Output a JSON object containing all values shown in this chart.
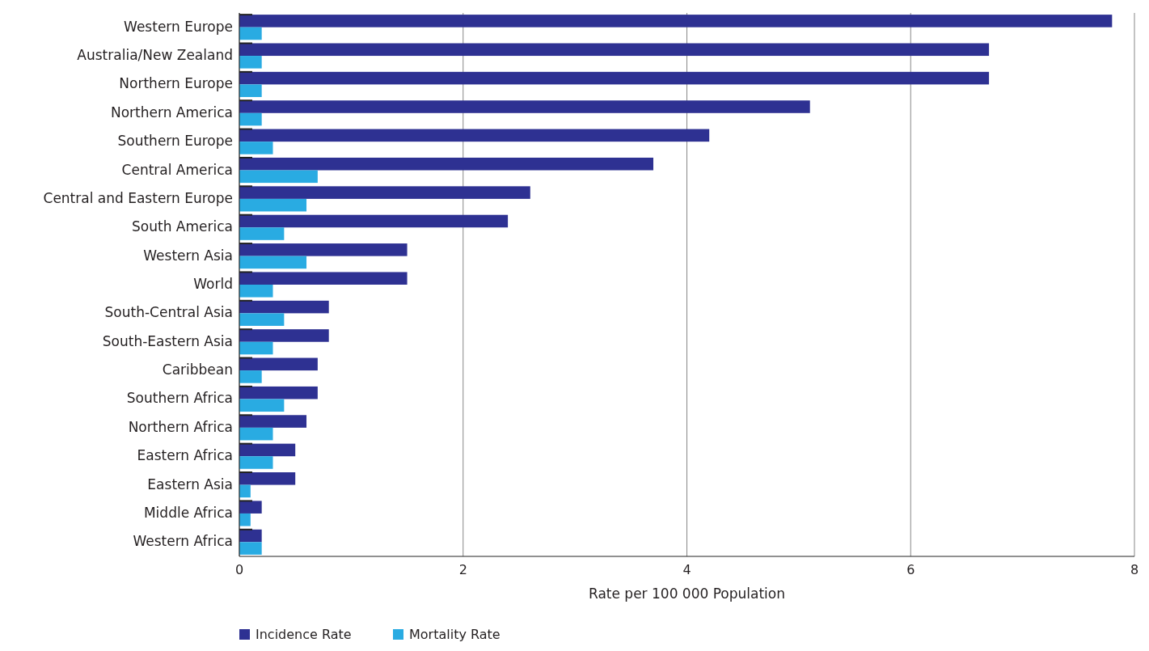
{
  "chart_data": {
    "type": "bar",
    "orientation": "horizontal",
    "xlabel": "Rate per 100 000 Population",
    "categories": [
      "Western Europe",
      "Australia/New Zealand",
      "Northern Europe",
      "Northern America",
      "Southern Europe",
      "Central America",
      "Central and Eastern Europe",
      "South America",
      "Western Asia",
      "World",
      "South-Central Asia",
      "South-Eastern Asia",
      "Caribbean",
      "Southern Africa",
      "Northern Africa",
      "Eastern Africa",
      "Eastern Asia",
      "Middle Africa",
      "Western Africa"
    ],
    "series": [
      {
        "name": "Incidence Rate",
        "color": "#2e3192",
        "values": [
          7.8,
          6.7,
          6.7,
          5.1,
          4.2,
          3.7,
          2.6,
          2.4,
          1.5,
          1.5,
          0.8,
          0.8,
          0.7,
          0.7,
          0.6,
          0.5,
          0.5,
          0.2,
          0.2
        ]
      },
      {
        "name": "Mortality Rate",
        "color": "#29abe2",
        "values": [
          0.2,
          0.2,
          0.2,
          0.2,
          0.3,
          0.7,
          0.6,
          0.4,
          0.6,
          0.3,
          0.4,
          0.3,
          0.2,
          0.4,
          0.3,
          0.3,
          0.1,
          0.1,
          0.2
        ]
      }
    ],
    "xlim": [
      0,
      8
    ],
    "xticks": [
      0,
      2,
      4,
      6,
      8
    ],
    "grid": "x",
    "legend": "bottom left"
  }
}
